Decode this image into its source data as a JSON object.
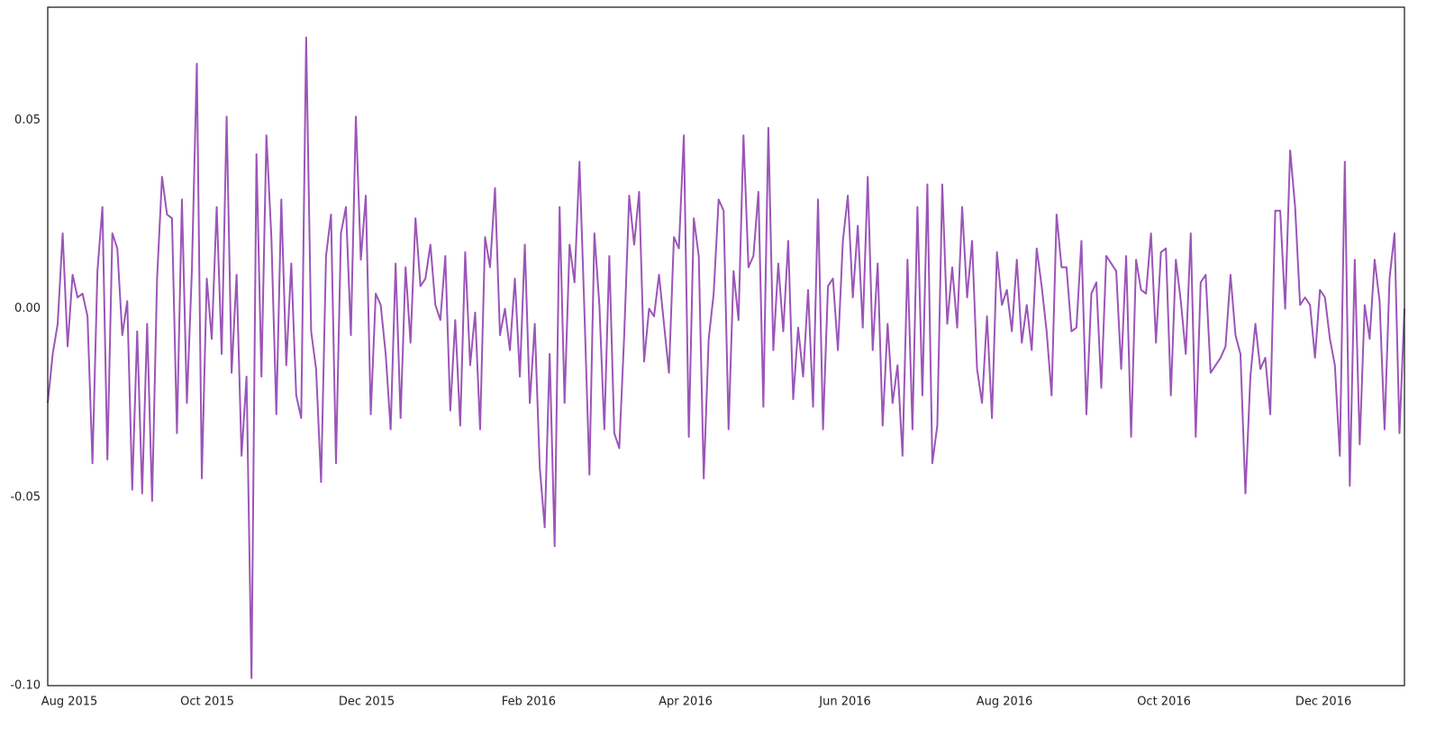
{
  "chart_data": {
    "type": "line",
    "color": "#9b55b8",
    "xlim": [
      "2015-08",
      "2017-01"
    ],
    "xticks": [
      {
        "value": "2015-08",
        "label": "Aug 2015"
      },
      {
        "value": "2015-10",
        "label": "Oct 2015"
      },
      {
        "value": "2015-12",
        "label": "Dec 2015"
      },
      {
        "value": "2016-02",
        "label": "Feb 2016"
      },
      {
        "value": "2016-04",
        "label": "Apr 2016"
      },
      {
        "value": "2016-06",
        "label": "Jun 2016"
      },
      {
        "value": "2016-08",
        "label": "Aug 2016"
      },
      {
        "value": "2016-10",
        "label": "Oct 2016"
      },
      {
        "value": "2016-12",
        "label": "Dec 2016"
      }
    ],
    "ylim": [
      -0.1,
      0.08
    ],
    "yticks": [
      {
        "value": -0.1,
        "label": "-0.10"
      },
      {
        "value": -0.05,
        "label": "-0.05"
      },
      {
        "value": 0,
        "label": "0.00"
      },
      {
        "value": 0.05,
        "label": "0.05"
      }
    ],
    "grid": false,
    "values": [
      -0.025,
      -0.012,
      -0.004,
      0.02,
      -0.01,
      0.009,
      0.003,
      0.004,
      -0.002,
      -0.041,
      0.01,
      0.027,
      -0.04,
      0.02,
      0.016,
      -0.007,
      0.002,
      -0.048,
      -0.006,
      -0.049,
      -0.004,
      -0.051,
      0.008,
      0.035,
      0.025,
      0.024,
      -0.033,
      0.029,
      -0.025,
      0.01,
      0.065,
      -0.045,
      0.008,
      -0.008,
      0.027,
      -0.012,
      0.051,
      -0.017,
      0.009,
      -0.039,
      -0.018,
      -0.098,
      0.041,
      -0.018,
      0.046,
      0.019,
      -0.028,
      0.029,
      -0.015,
      0.012,
      -0.023,
      -0.029,
      0.072,
      -0.006,
      -0.016,
      -0.046,
      0.014,
      0.025,
      -0.041,
      0.02,
      0.027,
      -0.007,
      0.051,
      0.013,
      0.03,
      -0.028,
      0.004,
      0.001,
      -0.012,
      -0.032,
      0.012,
      -0.029,
      0.011,
      -0.009,
      0.024,
      0.006,
      0.008,
      0.017,
      0.001,
      -0.003,
      0.014,
      -0.027,
      -0.003,
      -0.031,
      0.015,
      -0.015,
      -0.001,
      -0.032,
      0.019,
      0.011,
      0.032,
      -0.007,
      0.0,
      -0.011,
      0.008,
      -0.018,
      0.017,
      -0.025,
      -0.004,
      -0.042,
      -0.058,
      -0.012,
      -0.063,
      0.027,
      -0.025,
      0.017,
      0.007,
      0.039,
      -0.001,
      -0.044,
      0.02,
      0.001,
      -0.032,
      0.014,
      -0.033,
      -0.037,
      -0.007,
      0.03,
      0.017,
      0.031,
      -0.014,
      0.0,
      -0.002,
      0.009,
      -0.004,
      -0.017,
      0.019,
      0.016,
      0.046,
      -0.034,
      0.024,
      0.014,
      -0.045,
      -0.008,
      0.004,
      0.029,
      0.026,
      -0.032,
      0.01,
      -0.003,
      0.046,
      0.011,
      0.014,
      0.031,
      -0.026,
      0.048,
      -0.011,
      0.012,
      -0.006,
      0.018,
      -0.024,
      -0.005,
      -0.018,
      0.005,
      -0.026,
      0.029,
      -0.032,
      0.006,
      0.008,
      -0.011,
      0.018,
      0.03,
      0.003,
      0.022,
      -0.005,
      0.035,
      -0.011,
      0.012,
      -0.031,
      -0.004,
      -0.025,
      -0.015,
      -0.039,
      0.013,
      -0.032,
      0.027,
      -0.023,
      0.033,
      -0.041,
      -0.031,
      0.033,
      -0.004,
      0.011,
      -0.005,
      0.027,
      0.003,
      0.018,
      -0.016,
      -0.025,
      -0.002,
      -0.029,
      0.015,
      0.001,
      0.005,
      -0.006,
      0.013,
      -0.009,
      0.001,
      -0.011,
      0.016,
      0.006,
      -0.006,
      -0.023,
      0.025,
      0.011,
      0.011,
      -0.006,
      -0.005,
      0.018,
      -0.028,
      0.004,
      0.007,
      -0.021,
      0.014,
      0.012,
      0.01,
      -0.016,
      0.014,
      -0.034,
      0.013,
      0.005,
      0.004,
      0.02,
      -0.009,
      0.015,
      0.016,
      -0.023,
      0.013,
      0.002,
      -0.012,
      0.02,
      -0.034,
      0.007,
      0.009,
      -0.017,
      -0.015,
      -0.013,
      -0.01,
      0.009,
      -0.007,
      -0.012,
      -0.049,
      -0.018,
      -0.004,
      -0.016,
      -0.013,
      -0.028,
      0.026,
      0.026,
      0.0,
      0.042,
      0.027,
      0.001,
      0.003,
      0.001,
      -0.013,
      0.005,
      0.003,
      -0.008,
      -0.015,
      -0.039,
      0.039,
      -0.047,
      0.013,
      -0.036,
      0.001,
      -0.008,
      0.013,
      0.002,
      -0.032,
      0.008,
      0.02,
      -0.033,
      0.0
    ]
  }
}
